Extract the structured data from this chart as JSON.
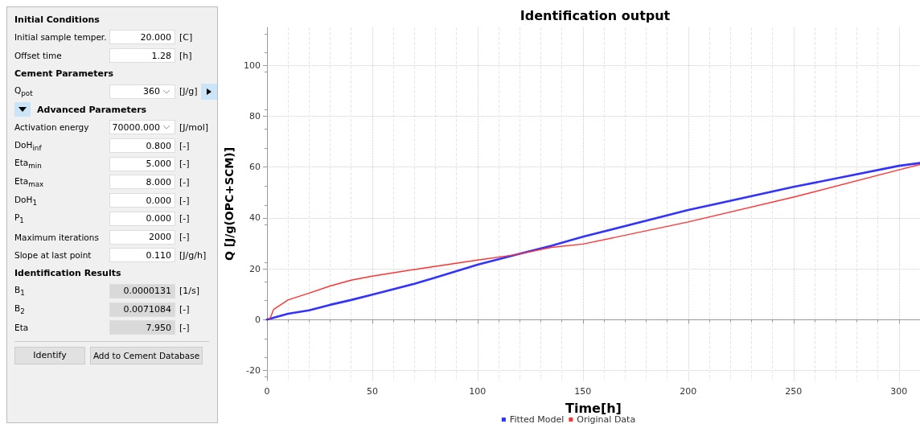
{
  "chart_data": [
    {
      "type": "other",
      "annotations": [
        "Initial Conditions",
        "Initial sample temper.",
        "20.000",
        "[C]",
        "Offset time",
        "1.28",
        "[h]",
        "Cement Parameters",
        "Q$_{pot}$",
        "360",
        "[J/g]",
        "Advanced Parameters",
        "Activation energy",
        "70000.000",
        "[J/mol]",
        "DoH$_{inf}$",
        "0.800",
        "[-]",
        "Eta$_{min}$",
        "5.000",
        "[-]",
        "Eta$_{max}$",
        "8.000",
        "[-]",
        "DoH$_{1}$",
        "0.000",
        "[-]",
        "P$_{1}$",
        "0.000",
        "[-]",
        "Maximum iterations",
        "2000",
        "[-]",
        "Slope at last point",
        "0.110",
        "[J/g/h]",
        "Identification Results",
        "B$_{1}$",
        "0.0000131",
        "[1/s]",
        "B$_{2}$",
        "0.0071084",
        "[-]",
        "Eta",
        "7.950",
        "[-]",
        "Identify",
        "Add to Cement Database"
      ]
    },
    {
      "type": "line",
      "title": "Identification output",
      "xlabel": "Time[h]",
      "ylabel": "Q [J/g(OPC+SCM)]",
      "xlim": [
        0,
        310
      ],
      "ylim": [
        -24,
        115
      ],
      "xticks": [
        0,
        50,
        100,
        150,
        200,
        250,
        300
      ],
      "yticks": [
        -20,
        0,
        20,
        40,
        60,
        80,
        100
      ],
      "grid": true,
      "legend": "bottom",
      "marker": "none",
      "line_style": "solid",
      "series": [
        {
          "name": "Fitted Model",
          "color": "#3333ff",
          "x": [
            0,
            10,
            20,
            30,
            40,
            50,
            70,
            80,
            100,
            118,
            135,
            150,
            200,
            250,
            300,
            310
          ],
          "values": [
            0,
            2.3,
            3.6,
            5.8,
            7.7,
            9.8,
            14.1,
            16.5,
            21.6,
            25.5,
            29,
            32.6,
            43.1,
            52.2,
            60.5,
            61.6
          ]
        },
        {
          "name": "Original Data",
          "color": "#ff3333",
          "x": [
            1.28,
            3.2,
            10,
            20,
            30,
            40,
            50,
            70,
            100,
            118,
            135,
            150,
            200,
            250,
            300,
            310
          ],
          "values": [
            0,
            4,
            7.7,
            10.4,
            13.2,
            15.5,
            17.1,
            19.7,
            23.4,
            25.5,
            28.4,
            29.7,
            38.4,
            48.2,
            58.9,
            61
          ]
        }
      ]
    }
  ]
}
